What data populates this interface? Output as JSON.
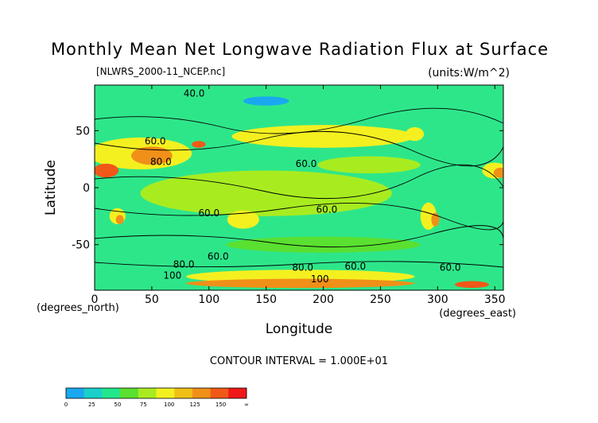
{
  "chart_data": {
    "type": "heatmap",
    "title": "Monthly Mean Net Longwave Radiation Flux at Surface",
    "subtitle_left": "[NLWRS_2000-11_NCEP.nc]",
    "subtitle_right": "(units:W/m^2)",
    "xlabel": "Longitude",
    "ylabel": "Latitude",
    "x_unit_note": "(degrees_east)",
    "y_unit_note": "(degrees_north)",
    "xlim": [
      0,
      357.5
    ],
    "ylim": [
      -90,
      90
    ],
    "x_ticks": [
      0,
      50,
      100,
      150,
      200,
      250,
      300,
      350
    ],
    "y_ticks": [
      50,
      0,
      -50
    ],
    "contour_interval_text": "CONTOUR INTERVAL = 1.000E+01",
    "contour_labels": [
      {
        "text": "40.0",
        "lon": 87,
        "lat": 80
      },
      {
        "text": "60.0",
        "lon": 53,
        "lat": 38
      },
      {
        "text": "80.0",
        "lon": 58,
        "lat": 20
      },
      {
        "text": "60.0",
        "lon": 185,
        "lat": 18
      },
      {
        "text": "60.0",
        "lon": 100,
        "lat": -25
      },
      {
        "text": "60.0",
        "lon": 203,
        "lat": -22
      },
      {
        "text": "60.0",
        "lon": 108,
        "lat": -63
      },
      {
        "text": "80.0",
        "lon": 78,
        "lat": -70
      },
      {
        "text": "100",
        "lon": 68,
        "lat": -80
      },
      {
        "text": "80.0",
        "lon": 182,
        "lat": -73
      },
      {
        "text": "60.0",
        "lon": 228,
        "lat": -72
      },
      {
        "text": "100",
        "lon": 197,
        "lat": -83
      },
      {
        "text": "60.0",
        "lon": 311,
        "lat": -73
      }
    ],
    "colorbar": {
      "tick_labels": [
        "0",
        "25",
        "50",
        "75",
        "100",
        "125",
        "150",
        "∞"
      ],
      "colors": [
        "#1aa8f0",
        "#1ad0c8",
        "#22e68c",
        "#5ae030",
        "#a8ec20",
        "#f4f020",
        "#f0c018",
        "#f09018",
        "#f05818",
        "#f01818"
      ]
    }
  }
}
